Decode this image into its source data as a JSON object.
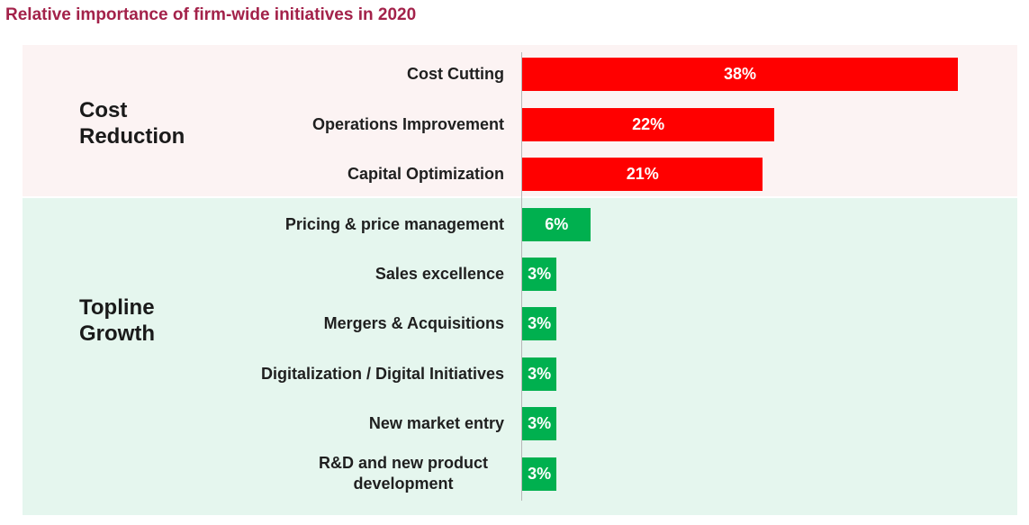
{
  "title": "Relative importance of firm-wide initiatives in 2020",
  "colors": {
    "title": "#a3224a",
    "cost_band": "#fcf3f3",
    "growth_band": "#e5f6ee",
    "cost_bar": "#ff0000",
    "growth_bar": "#00b04f"
  },
  "chart_data": {
    "type": "bar",
    "orientation": "horizontal",
    "title": "Relative importance of firm-wide initiatives in 2020",
    "xlim": [
      0,
      40
    ],
    "groups": [
      {
        "name": "Cost Reduction",
        "name_lines": [
          "Cost",
          "Reduction"
        ],
        "color": "#ff0000",
        "categories": [
          "Cost Cutting",
          "Operations Improvement",
          "Capital Optimization"
        ],
        "values": [
          38,
          22,
          21
        ],
        "labels": [
          "38%",
          "22%",
          "21%"
        ]
      },
      {
        "name": "Topline Growth",
        "name_lines": [
          "Topline",
          "Growth"
        ],
        "color": "#00b04f",
        "categories": [
          "Pricing & price management",
          "Sales excellence",
          "Mergers & Acquisitions",
          "Digitalization / Digital Initiatives",
          "New market entry",
          "R&D and new product development"
        ],
        "values": [
          6,
          3,
          3,
          3,
          3,
          3
        ],
        "labels": [
          "6%",
          "3%",
          "3%",
          "3%",
          "3%",
          "3%"
        ]
      }
    ]
  }
}
